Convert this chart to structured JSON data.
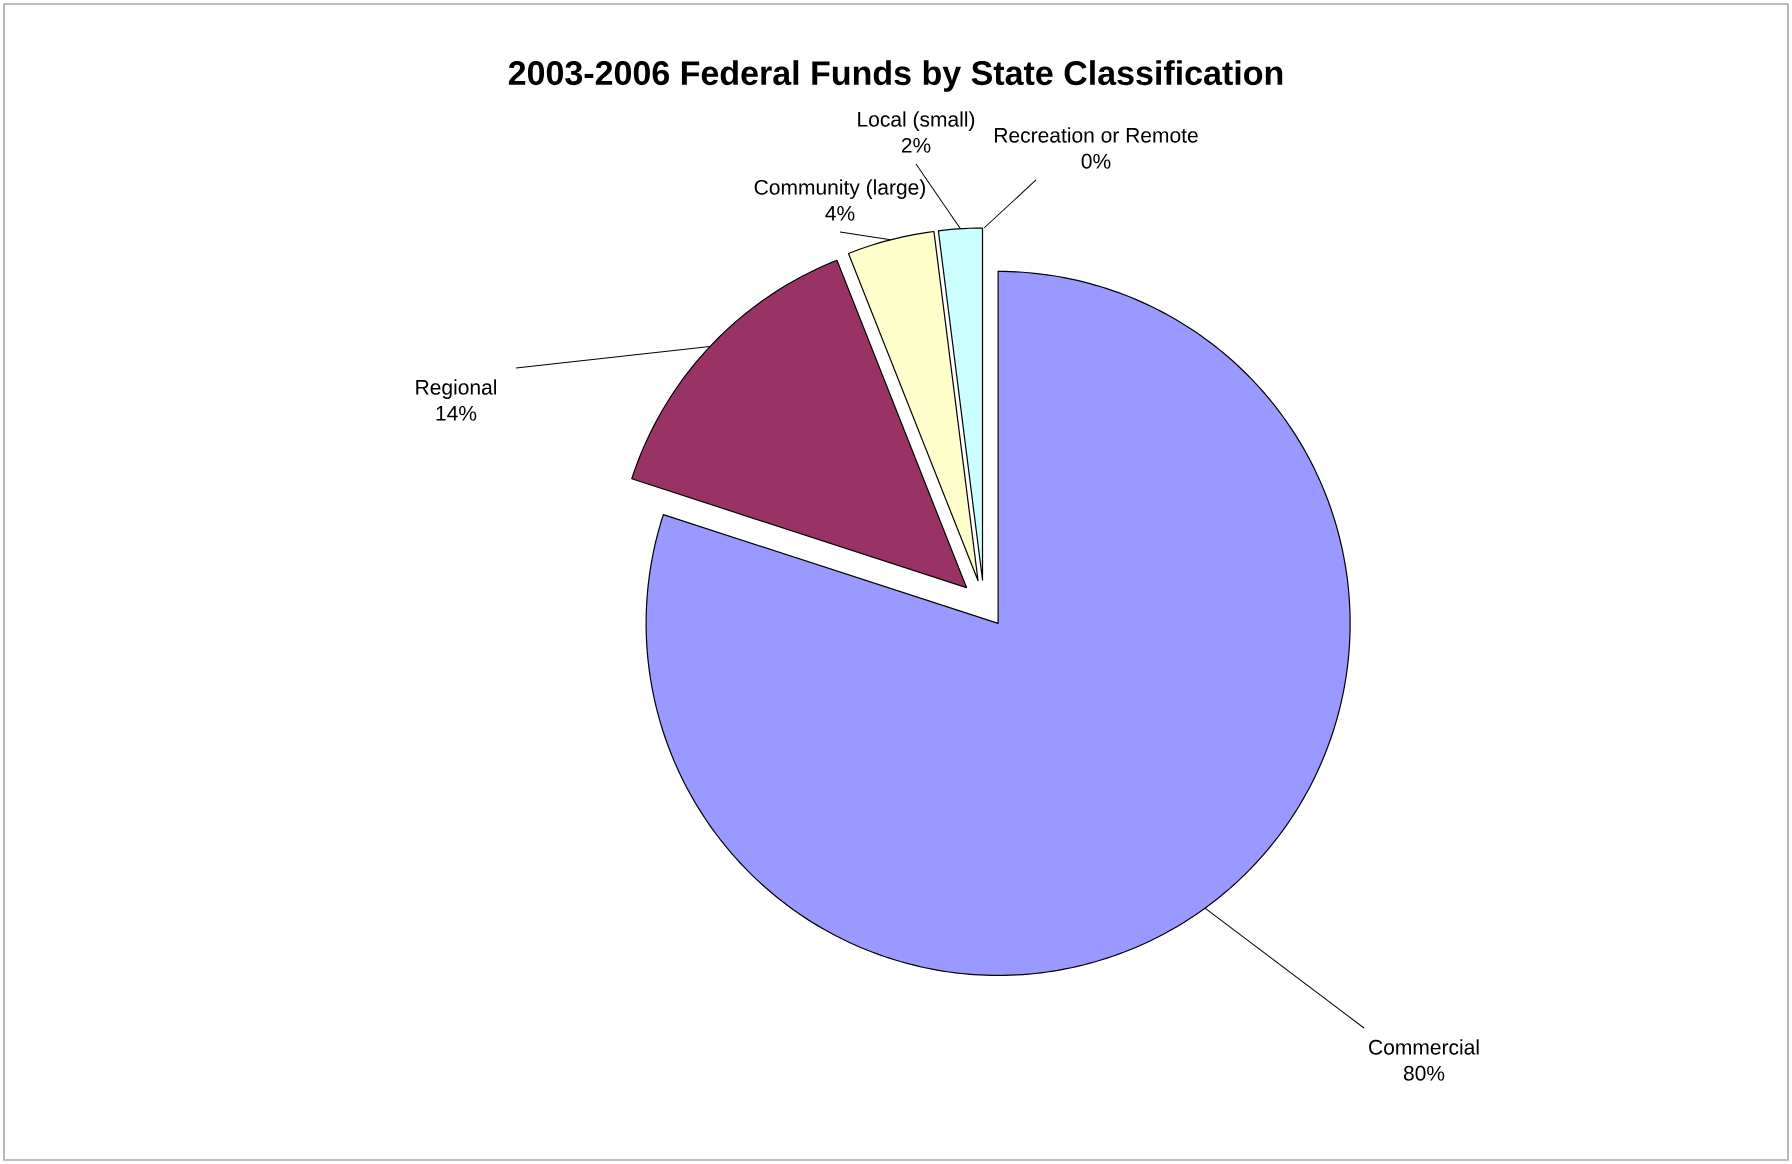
{
  "chart_data": {
    "type": "pie",
    "title": "2003-2006 Federal Funds by State Classification",
    "categories": [
      "Commercial",
      "Regional",
      "Community (large)",
      "Local (small)",
      "Recreation or Remote"
    ],
    "values": [
      80,
      14,
      4,
      2,
      0
    ],
    "value_labels": [
      "80%",
      "14%",
      "4%",
      "2%",
      "0%"
    ],
    "colors": [
      "#9999ff",
      "#993366",
      "#ffffcc",
      "#ccffff",
      "#660066"
    ]
  }
}
